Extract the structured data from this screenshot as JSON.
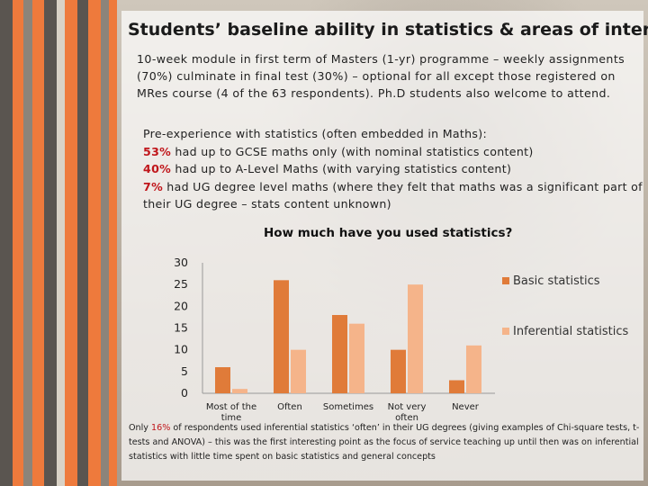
{
  "slide": {
    "title": "Students’ baseline ability in statistics & areas of interest",
    "intro": "10-week module in first term of Masters (1-yr) programme – weekly assignments (70%) culminate in final test (30%) – optional for all except those registered on MRes course (4 of the 63 respondents). Ph.D students also welcome to attend.",
    "pre_heading": "Pre-experience with statistics (often embedded in Maths):",
    "pre_items": [
      {
        "pct": "53%",
        "text": " had up to GCSE maths only (with nominal statistics content)"
      },
      {
        "pct": "40%",
        "text": " had up to A-Level Maths (with varying statistics content)"
      },
      {
        "pct": "7%",
        "text": " had UG degree level maths (where they felt that maths was a significant part of their UG degree – stats content unknown)"
      }
    ],
    "footer_pre": "Only ",
    "footer_pct": "16%",
    "footer_post": " of respondents used inferential statistics ‘often’ in their UG degrees (giving examples of Chi-square tests, t-tests and ANOVA) – this was the first interesting point as the focus of service teaching up until then was on inferential statistics with little time spent on basic statistics and general concepts"
  },
  "colors": {
    "basic": "#e07b39",
    "inferential": "#f5b48a",
    "stripe_gray": "#5a5550",
    "stripe_orange": "#ee7a3c"
  },
  "chart_data": {
    "type": "bar",
    "title": "How much have you used statistics?",
    "categories": [
      "Most of the time",
      "Often",
      "Sometimes",
      "Not very often",
      "Never"
    ],
    "series": [
      {
        "name": "Basic statistics",
        "values": [
          6,
          26,
          18,
          10,
          3
        ]
      },
      {
        "name": "Inferential statistics",
        "values": [
          1,
          10,
          16,
          25,
          11
        ]
      }
    ],
    "ylim": [
      0,
      30
    ],
    "yticks": [
      0,
      5,
      10,
      15,
      20,
      25,
      30
    ],
    "grid": false,
    "legend": "right"
  }
}
